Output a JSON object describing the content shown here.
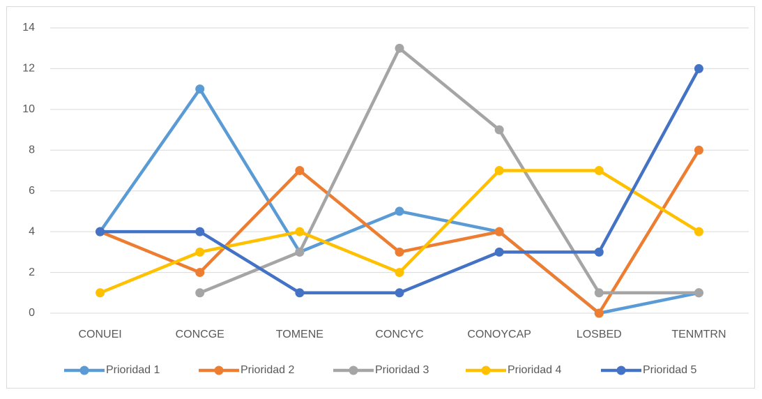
{
  "chart_data": {
    "type": "line",
    "categories": [
      "CONUEI",
      "CONCGE",
      "TOMENE",
      "CONCYC",
      "CONOYCAP",
      "LOSBED",
      "TENMTRN"
    ],
    "series": [
      {
        "name": "Prioridad 1",
        "color": "#5b9bd5",
        "values": [
          4,
          11,
          3,
          5,
          4,
          0,
          1
        ]
      },
      {
        "name": "Prioridad 2",
        "color": "#ed7d31",
        "values": [
          4,
          2,
          7,
          3,
          4,
          0,
          8
        ]
      },
      {
        "name": "Prioridad 3",
        "color": "#a5a5a5",
        "values": [
          null,
          1,
          3,
          13,
          9,
          1,
          1
        ]
      },
      {
        "name": "Prioridad 4",
        "color": "#ffc000",
        "values": [
          1,
          3,
          4,
          2,
          7,
          7,
          4
        ]
      },
      {
        "name": "Prioridad 5",
        "color": "#4472c4",
        "values": [
          4,
          4,
          1,
          1,
          3,
          3,
          12
        ]
      }
    ],
    "ylim": [
      0,
      14
    ],
    "yticks": [
      0,
      2,
      4,
      6,
      8,
      10,
      12,
      14
    ],
    "grid": true,
    "legend": "bottom"
  }
}
